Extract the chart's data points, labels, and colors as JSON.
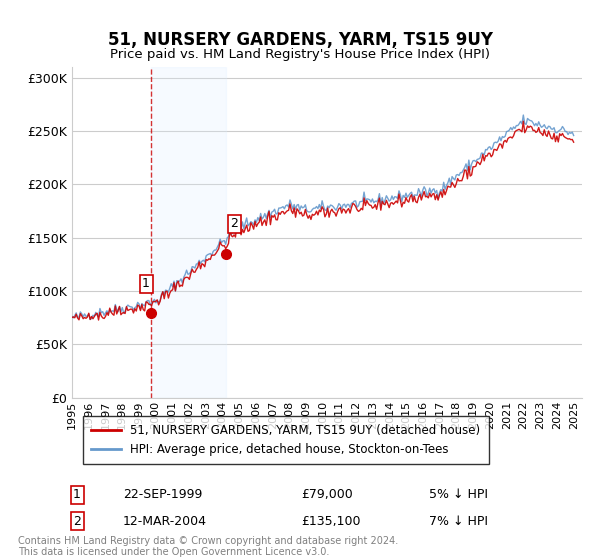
{
  "title": "51, NURSERY GARDENS, YARM, TS15 9UY",
  "subtitle": "Price paid vs. HM Land Registry's House Price Index (HPI)",
  "xlabel": "",
  "ylabel": "",
  "ylim": [
    0,
    310000
  ],
  "yticks": [
    0,
    50000,
    100000,
    150000,
    200000,
    250000,
    300000
  ],
  "ytick_labels": [
    "£0",
    "£50K",
    "£100K",
    "£150K",
    "£200K",
    "£250K",
    "£300K"
  ],
  "xstart_year": 1995,
  "xend_year": 2025,
  "sale1_date": 1999.73,
  "sale1_price": 79000,
  "sale1_label": "1",
  "sale2_date": 2004.2,
  "sale2_price": 135100,
  "sale2_label": "2",
  "red_line_color": "#cc0000",
  "blue_line_color": "#6699cc",
  "shade_color": "#ddeeff",
  "marker_color": "#cc0000",
  "grid_color": "#cccccc",
  "bg_color": "#ffffff",
  "legend1": "51, NURSERY GARDENS, YARM, TS15 9UY (detached house)",
  "legend2": "HPI: Average price, detached house, Stockton-on-Tees",
  "note1_num": "1",
  "note1_date": "22-SEP-1999",
  "note1_price": "£79,000",
  "note1_hpi": "5% ↓ HPI",
  "note2_num": "2",
  "note2_date": "12-MAR-2004",
  "note2_price": "£135,100",
  "note2_hpi": "7% ↓ HPI",
  "footer": "Contains HM Land Registry data © Crown copyright and database right 2024.\nThis data is licensed under the Open Government Licence v3.0."
}
